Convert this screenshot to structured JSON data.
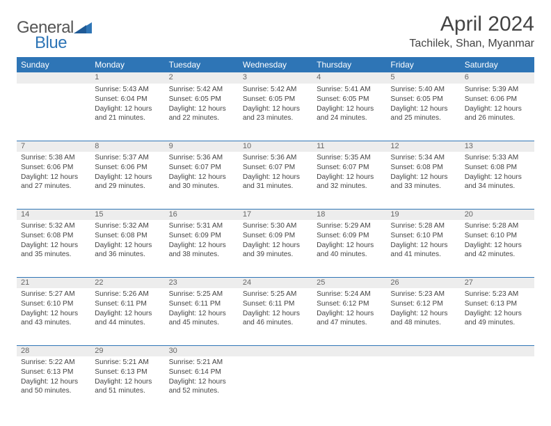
{
  "brand": {
    "text1": "General",
    "text2": "Blue",
    "color_general": "#555555",
    "color_blue": "#2e75b6"
  },
  "title": "April 2024",
  "location": "Tachilek, Shan, Myanmar",
  "header_bg": "#2e75b6",
  "header_text_color": "#ffffff",
  "daynum_bg": "#ededed",
  "border_color": "#2e75b6",
  "days": [
    "Sunday",
    "Monday",
    "Tuesday",
    "Wednesday",
    "Thursday",
    "Friday",
    "Saturday"
  ],
  "weeks": [
    [
      {
        "n": "",
        "lines": []
      },
      {
        "n": "1",
        "lines": [
          "Sunrise: 5:43 AM",
          "Sunset: 6:04 PM",
          "Daylight: 12 hours and 21 minutes."
        ]
      },
      {
        "n": "2",
        "lines": [
          "Sunrise: 5:42 AM",
          "Sunset: 6:05 PM",
          "Daylight: 12 hours and 22 minutes."
        ]
      },
      {
        "n": "3",
        "lines": [
          "Sunrise: 5:42 AM",
          "Sunset: 6:05 PM",
          "Daylight: 12 hours and 23 minutes."
        ]
      },
      {
        "n": "4",
        "lines": [
          "Sunrise: 5:41 AM",
          "Sunset: 6:05 PM",
          "Daylight: 12 hours and 24 minutes."
        ]
      },
      {
        "n": "5",
        "lines": [
          "Sunrise: 5:40 AM",
          "Sunset: 6:05 PM",
          "Daylight: 12 hours and 25 minutes."
        ]
      },
      {
        "n": "6",
        "lines": [
          "Sunrise: 5:39 AM",
          "Sunset: 6:06 PM",
          "Daylight: 12 hours and 26 minutes."
        ]
      }
    ],
    [
      {
        "n": "7",
        "lines": [
          "Sunrise: 5:38 AM",
          "Sunset: 6:06 PM",
          "Daylight: 12 hours and 27 minutes."
        ]
      },
      {
        "n": "8",
        "lines": [
          "Sunrise: 5:37 AM",
          "Sunset: 6:06 PM",
          "Daylight: 12 hours and 29 minutes."
        ]
      },
      {
        "n": "9",
        "lines": [
          "Sunrise: 5:36 AM",
          "Sunset: 6:07 PM",
          "Daylight: 12 hours and 30 minutes."
        ]
      },
      {
        "n": "10",
        "lines": [
          "Sunrise: 5:36 AM",
          "Sunset: 6:07 PM",
          "Daylight: 12 hours and 31 minutes."
        ]
      },
      {
        "n": "11",
        "lines": [
          "Sunrise: 5:35 AM",
          "Sunset: 6:07 PM",
          "Daylight: 12 hours and 32 minutes."
        ]
      },
      {
        "n": "12",
        "lines": [
          "Sunrise: 5:34 AM",
          "Sunset: 6:08 PM",
          "Daylight: 12 hours and 33 minutes."
        ]
      },
      {
        "n": "13",
        "lines": [
          "Sunrise: 5:33 AM",
          "Sunset: 6:08 PM",
          "Daylight: 12 hours and 34 minutes."
        ]
      }
    ],
    [
      {
        "n": "14",
        "lines": [
          "Sunrise: 5:32 AM",
          "Sunset: 6:08 PM",
          "Daylight: 12 hours and 35 minutes."
        ]
      },
      {
        "n": "15",
        "lines": [
          "Sunrise: 5:32 AM",
          "Sunset: 6:08 PM",
          "Daylight: 12 hours and 36 minutes."
        ]
      },
      {
        "n": "16",
        "lines": [
          "Sunrise: 5:31 AM",
          "Sunset: 6:09 PM",
          "Daylight: 12 hours and 38 minutes."
        ]
      },
      {
        "n": "17",
        "lines": [
          "Sunrise: 5:30 AM",
          "Sunset: 6:09 PM",
          "Daylight: 12 hours and 39 minutes."
        ]
      },
      {
        "n": "18",
        "lines": [
          "Sunrise: 5:29 AM",
          "Sunset: 6:09 PM",
          "Daylight: 12 hours and 40 minutes."
        ]
      },
      {
        "n": "19",
        "lines": [
          "Sunrise: 5:28 AM",
          "Sunset: 6:10 PM",
          "Daylight: 12 hours and 41 minutes."
        ]
      },
      {
        "n": "20",
        "lines": [
          "Sunrise: 5:28 AM",
          "Sunset: 6:10 PM",
          "Daylight: 12 hours and 42 minutes."
        ]
      }
    ],
    [
      {
        "n": "21",
        "lines": [
          "Sunrise: 5:27 AM",
          "Sunset: 6:10 PM",
          "Daylight: 12 hours and 43 minutes."
        ]
      },
      {
        "n": "22",
        "lines": [
          "Sunrise: 5:26 AM",
          "Sunset: 6:11 PM",
          "Daylight: 12 hours and 44 minutes."
        ]
      },
      {
        "n": "23",
        "lines": [
          "Sunrise: 5:25 AM",
          "Sunset: 6:11 PM",
          "Daylight: 12 hours and 45 minutes."
        ]
      },
      {
        "n": "24",
        "lines": [
          "Sunrise: 5:25 AM",
          "Sunset: 6:11 PM",
          "Daylight: 12 hours and 46 minutes."
        ]
      },
      {
        "n": "25",
        "lines": [
          "Sunrise: 5:24 AM",
          "Sunset: 6:12 PM",
          "Daylight: 12 hours and 47 minutes."
        ]
      },
      {
        "n": "26",
        "lines": [
          "Sunrise: 5:23 AM",
          "Sunset: 6:12 PM",
          "Daylight: 12 hours and 48 minutes."
        ]
      },
      {
        "n": "27",
        "lines": [
          "Sunrise: 5:23 AM",
          "Sunset: 6:13 PM",
          "Daylight: 12 hours and 49 minutes."
        ]
      }
    ],
    [
      {
        "n": "28",
        "lines": [
          "Sunrise: 5:22 AM",
          "Sunset: 6:13 PM",
          "Daylight: 12 hours and 50 minutes."
        ]
      },
      {
        "n": "29",
        "lines": [
          "Sunrise: 5:21 AM",
          "Sunset: 6:13 PM",
          "Daylight: 12 hours and 51 minutes."
        ]
      },
      {
        "n": "30",
        "lines": [
          "Sunrise: 5:21 AM",
          "Sunset: 6:14 PM",
          "Daylight: 12 hours and 52 minutes."
        ]
      },
      {
        "n": "",
        "lines": []
      },
      {
        "n": "",
        "lines": []
      },
      {
        "n": "",
        "lines": []
      },
      {
        "n": "",
        "lines": []
      }
    ]
  ]
}
